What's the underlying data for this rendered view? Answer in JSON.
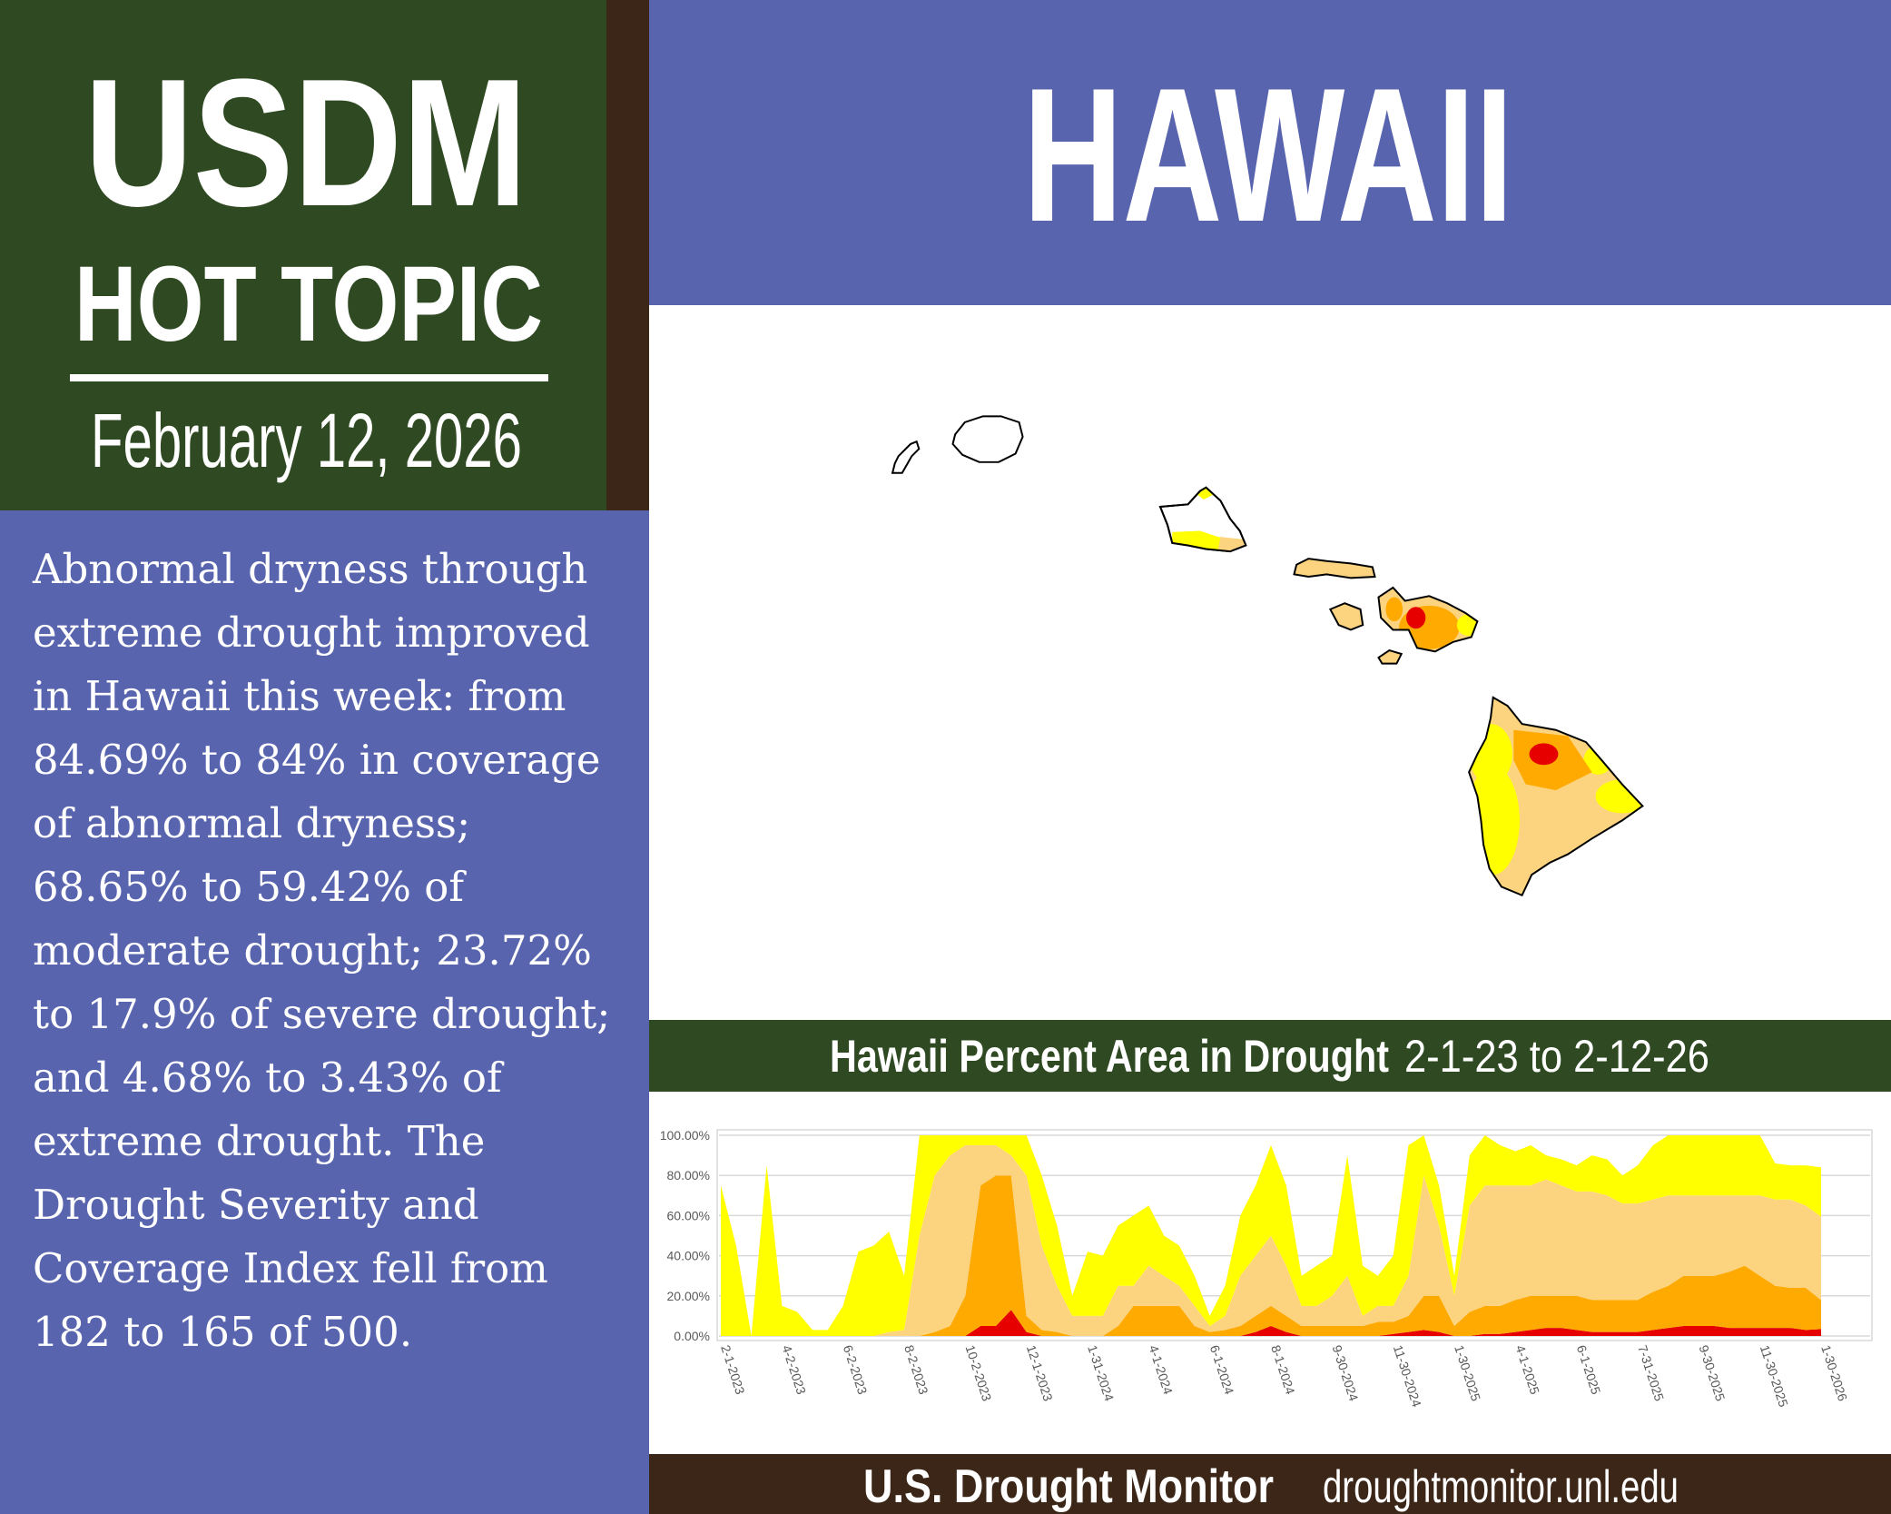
{
  "header": {
    "title": "USDM",
    "subtitle": "HOT TOPIC",
    "date": "February 12, 2026"
  },
  "summary": "Abnormal dryness through extreme drought improved in Hawaii this week: from 84.69% to 84% in coverage of abnormal dryness; 68.65% to 59.42% of moderate drought; 23.72% to 17.9% of severe drought; and 4.68% to 3.43% of extreme drought. The Drought Severity and Coverage Index fell from 182 to 165 of 500.",
  "state": "HAWAII",
  "chart_data": {
    "type": "area",
    "stacked": true,
    "title": "Hawaii Percent Area in Drought",
    "subtitle": "2-1-23 to 2-12-26",
    "categories": [
      "2-1-2023",
      null,
      null,
      null,
      "4-2-2023",
      null,
      null,
      null,
      "6-2-2023",
      null,
      null,
      null,
      "8-2-2023",
      null,
      null,
      null,
      "10-2-2023",
      null,
      null,
      null,
      "12-1-2023",
      null,
      null,
      null,
      "1-31-2024",
      null,
      null,
      null,
      "4-1-2024",
      null,
      null,
      null,
      "6-1-2024",
      null,
      null,
      null,
      "8-1-2024",
      null,
      null,
      null,
      "9-30-2024",
      null,
      null,
      null,
      "11-30-2024",
      null,
      null,
      null,
      "1-30-2025",
      null,
      null,
      null,
      "4-1-2025",
      null,
      null,
      null,
      "6-1-2025",
      null,
      null,
      null,
      "7-31-2025",
      null,
      null,
      null,
      "9-30-2025",
      null,
      null,
      null,
      "11-30-2025",
      null,
      null,
      null,
      "1-30-2026"
    ],
    "series": [
      {
        "color": "#e60000",
        "values": [
          0,
          0,
          0,
          0,
          0,
          0,
          0,
          0,
          0,
          0,
          0,
          0,
          0,
          0,
          0,
          0,
          0,
          5,
          5,
          13,
          2,
          0,
          0,
          0,
          0,
          0,
          0,
          0,
          0,
          0,
          0,
          0,
          0,
          0,
          0,
          2,
          5,
          2,
          0,
          0,
          0,
          0,
          0,
          0,
          1,
          2,
          3,
          2,
          0,
          0,
          1,
          1,
          2,
          3,
          4,
          4,
          3,
          2,
          2,
          2,
          2,
          3,
          4,
          5,
          5,
          5,
          4,
          4,
          4,
          4,
          4,
          3,
          3.43
        ]
      },
      {
        "color": "#ffaa00",
        "values": [
          0,
          0,
          0,
          0,
          0,
          0,
          0,
          0,
          0,
          0,
          0,
          0,
          0,
          0,
          2,
          5,
          20,
          70,
          75,
          67,
          8,
          3,
          2,
          0,
          0,
          0,
          5,
          15,
          15,
          15,
          15,
          5,
          2,
          3,
          5,
          8,
          10,
          8,
          5,
          5,
          5,
          5,
          5,
          7,
          6,
          8,
          17,
          18,
          5,
          12,
          14,
          14,
          16,
          17,
          16,
          16,
          17,
          16,
          16,
          16,
          16,
          19,
          21,
          25,
          25,
          25,
          28,
          31,
          26,
          21,
          20,
          21,
          14.47
        ]
      },
      {
        "color": "#fcd37f",
        "values": [
          0,
          0,
          0,
          0,
          0,
          0,
          0,
          0,
          0,
          0,
          0,
          2,
          3,
          50,
          78,
          85,
          75,
          20,
          15,
          10,
          70,
          42,
          23,
          10,
          10,
          10,
          20,
          10,
          20,
          15,
          10,
          10,
          3,
          7,
          25,
          30,
          35,
          25,
          10,
          10,
          15,
          25,
          5,
          8,
          8,
          20,
          60,
          35,
          15,
          53,
          60,
          60,
          57,
          55,
          58,
          55,
          52,
          54,
          52,
          48,
          48,
          46,
          45,
          40,
          40,
          40,
          38,
          35,
          40,
          43,
          44,
          41,
          41.52
        ]
      },
      {
        "color": "#ffff00",
        "values": [
          75,
          45,
          0,
          85,
          15,
          12,
          3,
          3,
          15,
          42,
          45,
          50,
          27,
          50,
          20,
          10,
          5,
          5,
          5,
          10,
          20,
          35,
          30,
          10,
          32,
          30,
          30,
          35,
          30,
          20,
          20,
          15,
          5,
          15,
          30,
          35,
          45,
          40,
          15,
          20,
          20,
          60,
          25,
          15,
          25,
          65,
          20,
          20,
          10,
          25,
          25,
          20,
          17,
          20,
          12,
          13,
          13,
          18,
          18,
          14,
          19,
          27,
          30,
          30,
          30,
          30,
          30,
          30,
          30,
          18,
          17,
          20,
          24.58
        ]
      }
    ],
    "ylim": [
      0,
      100
    ],
    "yticks": [
      {
        "value": 0,
        "label": "0.00%"
      },
      {
        "value": 20,
        "label": "20.00%"
      },
      {
        "value": 40,
        "label": "40.00%"
      },
      {
        "value": 60,
        "label": "60.00%"
      },
      {
        "value": 80,
        "label": "80.00%"
      },
      {
        "value": 100,
        "label": "100.00%"
      }
    ],
    "grid": true
  },
  "footer": {
    "brand": "U.S. Drought Monitor",
    "url": "droughtmonitor.unl.edu"
  }
}
